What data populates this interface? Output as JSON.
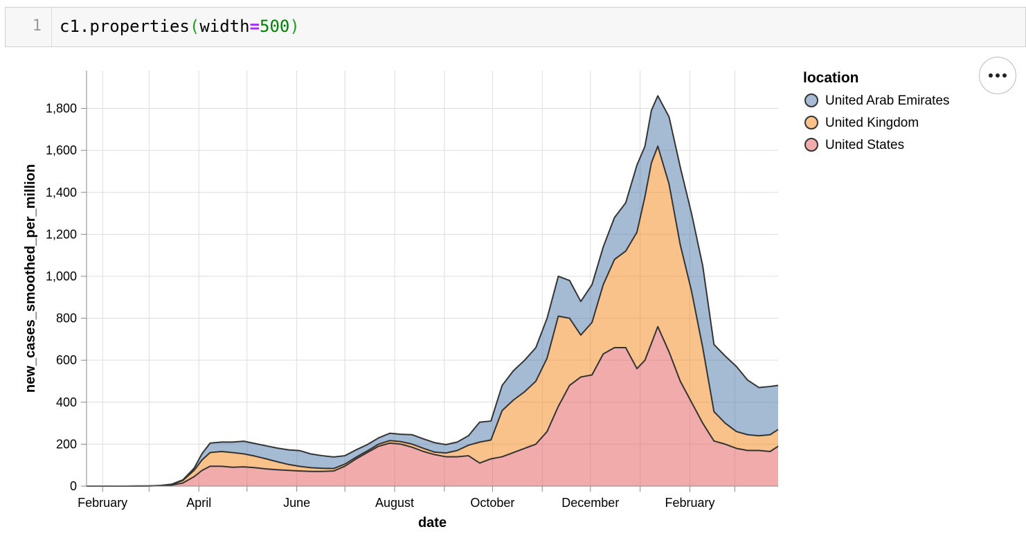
{
  "code_cell": {
    "line_number": "1",
    "code": {
      "object": "c1",
      "dot": ".",
      "method": "properties",
      "open_paren": "(",
      "arg_name": "width",
      "equals": "=",
      "arg_value": "500",
      "close_paren": ")"
    }
  },
  "actions_menu": {
    "icon": "more-horizontal-icon"
  },
  "chart_data": {
    "type": "area",
    "stacked": true,
    "xlabel": "date",
    "ylabel": "new_cases_smoothed_per_million",
    "x_range": [
      "2020-01-22",
      "2021-03-28"
    ],
    "ylim": [
      0,
      1980
    ],
    "grid": true,
    "x_ticks": [
      {
        "date": "2020-02-01",
        "label": "February"
      },
      {
        "date": "2020-03-01",
        "label": ""
      },
      {
        "date": "2020-04-01",
        "label": "April"
      },
      {
        "date": "2020-05-01",
        "label": ""
      },
      {
        "date": "2020-06-01",
        "label": "June"
      },
      {
        "date": "2020-07-01",
        "label": ""
      },
      {
        "date": "2020-08-01",
        "label": "August"
      },
      {
        "date": "2020-09-01",
        "label": ""
      },
      {
        "date": "2020-10-01",
        "label": "October"
      },
      {
        "date": "2020-11-01",
        "label": ""
      },
      {
        "date": "2020-12-01",
        "label": "December"
      },
      {
        "date": "2021-01-01",
        "label": ""
      },
      {
        "date": "2021-02-01",
        "label": "February"
      },
      {
        "date": "2021-03-01",
        "label": ""
      }
    ],
    "y_ticks": [
      {
        "value": 0,
        "label": "0"
      },
      {
        "value": 200,
        "label": "200"
      },
      {
        "value": 400,
        "label": "400"
      },
      {
        "value": 600,
        "label": "600"
      },
      {
        "value": 800,
        "label": "800"
      },
      {
        "value": 1000,
        "label": "1,000"
      },
      {
        "value": 1200,
        "label": "1,200"
      },
      {
        "value": 1400,
        "label": "1,400"
      },
      {
        "value": 1600,
        "label": "1,600"
      },
      {
        "value": 1800,
        "label": "1,800"
      }
    ],
    "legend": {
      "title": "location",
      "position": "right"
    },
    "x": [
      "2020-01-22",
      "2020-02-15",
      "2020-03-01",
      "2020-03-08",
      "2020-03-15",
      "2020-03-22",
      "2020-03-29",
      "2020-04-03",
      "2020-04-08",
      "2020-04-15",
      "2020-04-22",
      "2020-04-29",
      "2020-05-06",
      "2020-05-13",
      "2020-05-20",
      "2020-05-27",
      "2020-06-03",
      "2020-06-10",
      "2020-06-17",
      "2020-06-24",
      "2020-07-01",
      "2020-07-08",
      "2020-07-15",
      "2020-07-22",
      "2020-07-29",
      "2020-08-05",
      "2020-08-12",
      "2020-08-19",
      "2020-08-26",
      "2020-09-02",
      "2020-09-09",
      "2020-09-16",
      "2020-09-23",
      "2020-09-30",
      "2020-10-07",
      "2020-10-14",
      "2020-10-21",
      "2020-10-28",
      "2020-11-04",
      "2020-11-11",
      "2020-11-18",
      "2020-11-25",
      "2020-12-02",
      "2020-12-09",
      "2020-12-16",
      "2020-12-23",
      "2020-12-30",
      "2021-01-04",
      "2021-01-08",
      "2021-01-12",
      "2021-01-19",
      "2021-01-26",
      "2021-02-02",
      "2021-02-09",
      "2021-02-16",
      "2021-02-23",
      "2021-03-02",
      "2021-03-09",
      "2021-03-16",
      "2021-03-23",
      "2021-03-28"
    ],
    "series": [
      {
        "name": "United States",
        "color": "#e45756",
        "values": [
          0,
          0,
          1,
          2,
          5,
          15,
          45,
          75,
          95,
          95,
          90,
          92,
          88,
          82,
          78,
          75,
          72,
          70,
          70,
          72,
          95,
          130,
          160,
          190,
          205,
          200,
          185,
          165,
          150,
          140,
          140,
          145,
          110,
          130,
          140,
          160,
          180,
          200,
          260,
          380,
          480,
          520,
          530,
          630,
          660,
          660,
          560,
          600,
          680,
          760,
          640,
          500,
          400,
          300,
          215,
          200,
          180,
          170,
          170,
          165,
          190
        ]
      },
      {
        "name": "United Kingdom",
        "color": "#f58518",
        "values": [
          0,
          0,
          0,
          1,
          3,
          12,
          30,
          50,
          65,
          70,
          70,
          62,
          55,
          48,
          38,
          28,
          22,
          18,
          15,
          12,
          10,
          8,
          8,
          10,
          12,
          12,
          15,
          15,
          12,
          18,
          30,
          50,
          100,
          90,
          220,
          250,
          270,
          300,
          350,
          430,
          320,
          200,
          250,
          330,
          420,
          460,
          650,
          780,
          860,
          860,
          800,
          650,
          530,
          360,
          140,
          100,
          80,
          75,
          70,
          80,
          80
        ]
      },
      {
        "name": "United Arab Emirates",
        "color": "#4c78a8",
        "values": [
          0,
          0,
          0,
          0,
          1,
          3,
          10,
          30,
          45,
          45,
          50,
          60,
          60,
          62,
          65,
          70,
          75,
          65,
          60,
          55,
          40,
          35,
          30,
          30,
          35,
          35,
          45,
          45,
          45,
          40,
          40,
          45,
          95,
          90,
          120,
          140,
          150,
          160,
          190,
          190,
          180,
          160,
          180,
          180,
          200,
          230,
          320,
          240,
          250,
          240,
          320,
          370,
          370,
          390,
          320,
          320,
          310,
          260,
          230,
          230,
          210
        ]
      }
    ]
  }
}
